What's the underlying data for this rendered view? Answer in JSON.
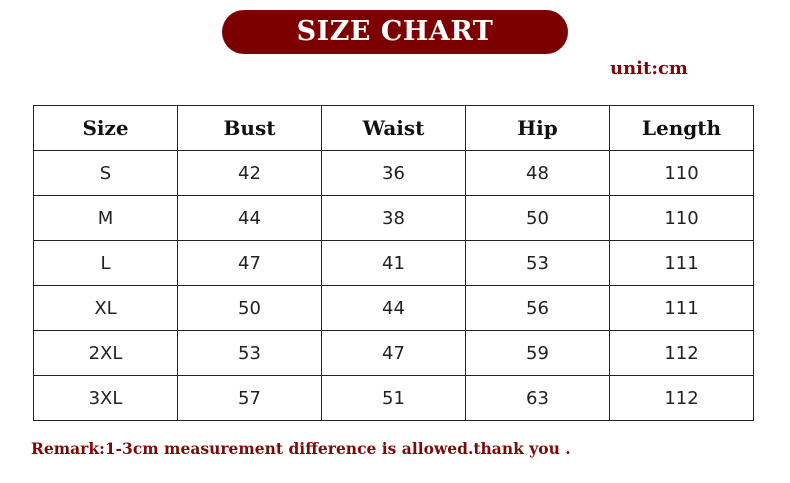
{
  "title": "SIZE CHART",
  "unit": "unit:cm",
  "accent_color": "#7d0000",
  "table": {
    "headers": [
      "Size",
      "Bust",
      "Waist",
      "Hip",
      "Length"
    ],
    "rows": [
      [
        "S",
        "42",
        "36",
        "48",
        "110"
      ],
      [
        "M",
        "44",
        "38",
        "50",
        "110"
      ],
      [
        "L",
        "47",
        "41",
        "53",
        "111"
      ],
      [
        "XL",
        "50",
        "44",
        "56",
        "111"
      ],
      [
        "2XL",
        "53",
        "47",
        "59",
        "112"
      ],
      [
        "3XL",
        "57",
        "51",
        "63",
        "112"
      ]
    ]
  },
  "remark": "Remark:1-3cm measurement difference is allowed.thank you ."
}
